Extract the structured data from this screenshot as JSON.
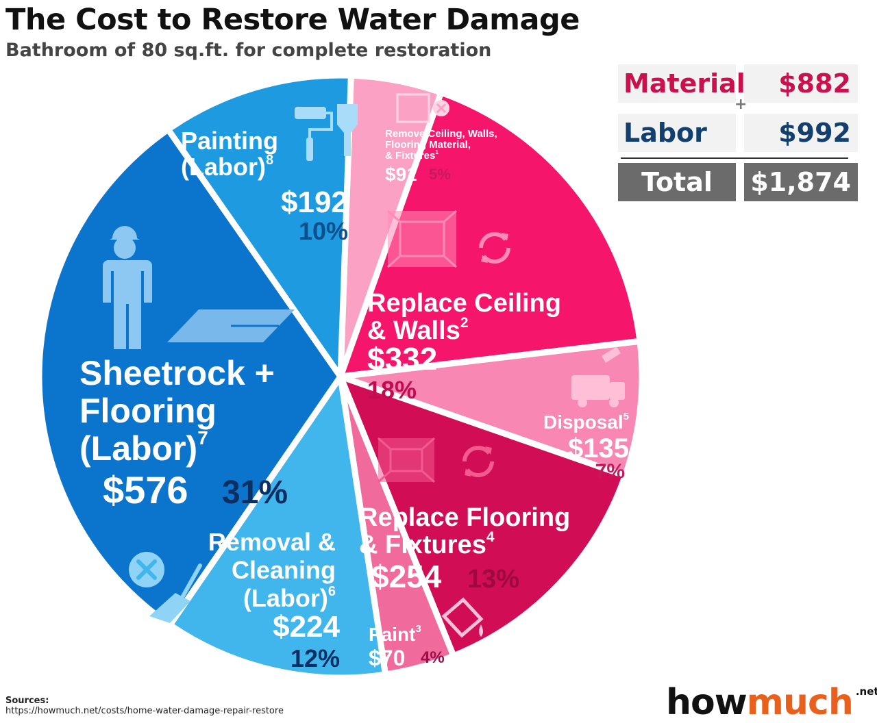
{
  "header": {
    "title": "The Cost to Restore Water Damage",
    "subtitle": "Bathroom of 80 sq.ft. for complete restoration"
  },
  "summary": {
    "material_label": "Material",
    "material_value": "$882",
    "labor_label": "Labor",
    "labor_value": "$992",
    "total_label": "Total",
    "total_value": "$1,874",
    "plus": "+",
    "colors": {
      "material": "#c8114d",
      "labor": "#123f6e",
      "total_bg": "#6b6b6b"
    }
  },
  "chart_data": {
    "type": "pie",
    "title": "The Cost to Restore Water Damage",
    "subtitle": "Bathroom of 80 sq.ft. for complete restoration",
    "slices": [
      {
        "label_lines": [
          "Painting",
          "(Labor)"
        ],
        "footnote": "8",
        "value": 192,
        "value_label": "$192",
        "percent": 10,
        "percent_label": "10%",
        "group": "Labor",
        "color": "#1e9be0",
        "icon": "paint-roller-brush-icon"
      },
      {
        "label_lines": [
          "Sheetrock +",
          "Flooring",
          "(Labor)"
        ],
        "footnote": "7",
        "value": 576,
        "value_label": "$576",
        "percent": 31,
        "percent_label": "31%",
        "group": "Labor",
        "color": "#0b74cc",
        "icon": "worker-icon"
      },
      {
        "label_lines": [
          "Removal &",
          "Cleaning",
          "(Labor)"
        ],
        "footnote": "6",
        "value": 224,
        "value_label": "$224",
        "percent": 12,
        "percent_label": "12%",
        "group": "Labor",
        "color": "#41b6ec",
        "icon": "broom-icon"
      },
      {
        "label_lines": [
          "Paint"
        ],
        "footnote": "3",
        "value": 70,
        "value_label": "$70",
        "percent": 4,
        "percent_label": "4%",
        "group": "Material",
        "color": "#f06a9c",
        "icon": "paint-bucket-icon"
      },
      {
        "label_lines": [
          "Replace Flooring",
          "& Fixtures"
        ],
        "footnote": "4",
        "value": 254,
        "value_label": "$254",
        "percent": 13,
        "percent_label": "13%",
        "group": "Material",
        "color": "#d10d55",
        "icon": "room-floor-icon"
      },
      {
        "label_lines": [
          "Disposal"
        ],
        "footnote": "5",
        "value": 135,
        "value_label": "$135",
        "percent": 7,
        "percent_label": "7%",
        "group": "Material",
        "color": "#f987b3",
        "icon": "garbage-truck-icon"
      },
      {
        "label_lines": [
          "Replace Ceiling",
          "& Walls"
        ],
        "footnote": "2",
        "value": 332,
        "value_label": "$332",
        "percent": 18,
        "percent_label": "18%",
        "group": "Material",
        "color": "#f5166b",
        "icon": "room-walls-icon"
      },
      {
        "label_lines": [
          "Remove Ceiling, Walls,",
          "Flooring Material,",
          "& Fixtures"
        ],
        "footnote": "1",
        "value": 91,
        "value_label": "$91",
        "percent": 5,
        "percent_label": "5%",
        "group": "Material",
        "color": "#fba2c4",
        "icon": "remove-room-icon"
      }
    ]
  },
  "sources": {
    "label": "Sources:",
    "url": "https://howmuch.net/costs/home-water-damage-repair-restore"
  },
  "logo": {
    "part1": "how",
    "part2": "much",
    "suffix": ".net"
  }
}
